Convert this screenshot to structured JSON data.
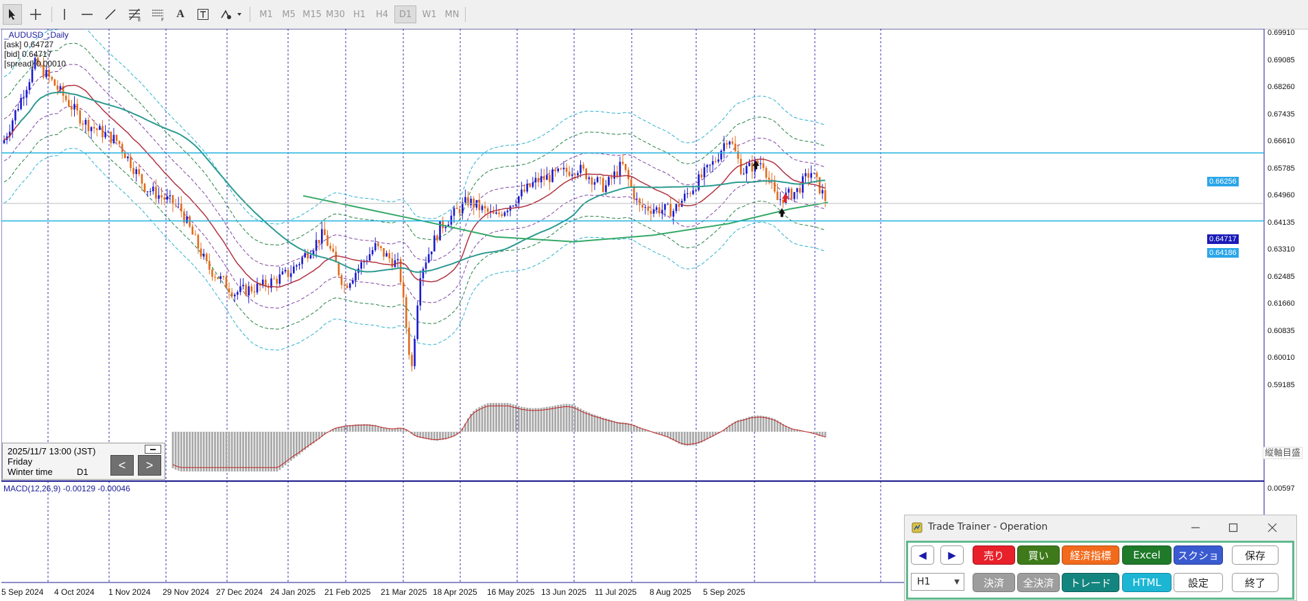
{
  "toolbar": {
    "timeframes": [
      "M1",
      "M5",
      "M15",
      "M30",
      "H1",
      "H4",
      "D1",
      "W1",
      "MN"
    ],
    "active_timeframe": "D1"
  },
  "chart": {
    "symbol": "_AUDUSD_,Daily",
    "ask": "[ask] 0.64727",
    "bid": "[bid] 0.64717",
    "spread": "[spread] 0.00010",
    "price_labels": [
      "0.69910",
      "0.69085",
      "0.68260",
      "0.67435",
      "0.66610",
      "0.65785",
      "0.64960",
      "0.64135",
      "0.63310",
      "0.62485",
      "0.61660",
      "0.60835",
      "0.60010",
      "0.59185"
    ],
    "hline_upper": "0.66256",
    "hline_current": "0.64717",
    "hline_lower": "0.64186",
    "vertical_scale_label": "縦軸目盛",
    "macd_label": "MACD(12,26,9) -0.00129 -0.00046",
    "macd_scale_label": "0.00597",
    "dates": [
      "5 Sep 2024",
      "4 Oct 2024",
      "1 Nov 2024",
      "29 Nov 2024",
      "27 Dec 2024",
      "24 Jan 2025",
      "21 Feb 2025",
      "21 Mar 2025",
      "18 Apr 2025",
      "16 May 2025",
      "13 Jun 2025",
      "11 Jul 2025",
      "8 Aug 2025",
      "5 Sep 2025"
    ],
    "colors": {
      "bull": "#1a1acc",
      "bear": "#e06a1a",
      "ma_fast": "#b03040",
      "ma_slow": "#2a9a90",
      "ma_200": "#33a866",
      "hline": "#20b0e0"
    }
  },
  "info_panel": {
    "datetime": "2025/11/7 13:00 (JST)",
    "weekday": "Friday",
    "timezone": "Winter time",
    "timeframe": "D1",
    "prev": "<",
    "next": ">"
  },
  "trade_trainer": {
    "title": "Trade Trainer - Operation",
    "prev_arrow": "◀",
    "next_arrow": "▶",
    "sell": "売り",
    "buy": "買い",
    "indicators": "経済指標",
    "excel": "Excel",
    "screenshot": "スクショ",
    "save": "保存",
    "timeframe_select": "H1",
    "settle": "決済",
    "settle_all": "全決済",
    "trade": "トレード",
    "html": "HTML",
    "settings": "設定",
    "exit": "終了"
  }
}
